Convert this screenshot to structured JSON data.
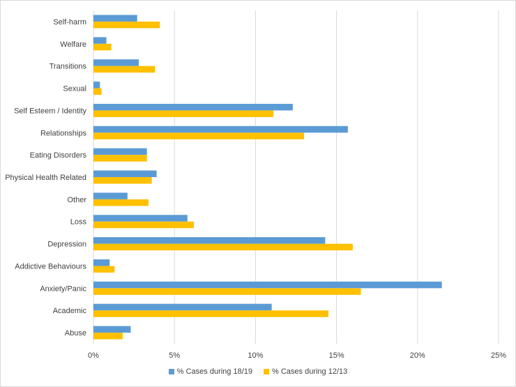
{
  "chart_data": {
    "type": "bar",
    "orientation": "horizontal",
    "categories": [
      "Self-harm",
      "Welfare",
      "Transitions",
      "Sexual",
      "Self Esteem / Identity",
      "Relationships",
      "Eating Disorders",
      "Physical Health Related",
      "Other",
      "Loss",
      "Depression",
      "Addictive Behaviours",
      "Anxiety/Panic",
      "Academic",
      "Abuse"
    ],
    "series": [
      {
        "name": "% Cases during 18/19",
        "color": "#5b9bd5",
        "values": [
          2.7,
          0.8,
          2.8,
          0.4,
          12.3,
          15.7,
          3.3,
          3.9,
          2.1,
          5.8,
          14.3,
          1.0,
          21.5,
          11.0,
          2.3
        ]
      },
      {
        "name": "% Cases during 12/13",
        "color": "#ffc000",
        "values": [
          4.1,
          1.1,
          3.8,
          0.5,
          11.1,
          13.0,
          3.3,
          3.6,
          3.4,
          6.2,
          16.0,
          1.3,
          16.5,
          14.5,
          1.8
        ]
      }
    ],
    "x_ticks": [
      "0%",
      "5%",
      "10%",
      "15%",
      "20%",
      "25%"
    ],
    "xlim": [
      0,
      25
    ],
    "grid": "vertical",
    "legend": "bottom"
  }
}
